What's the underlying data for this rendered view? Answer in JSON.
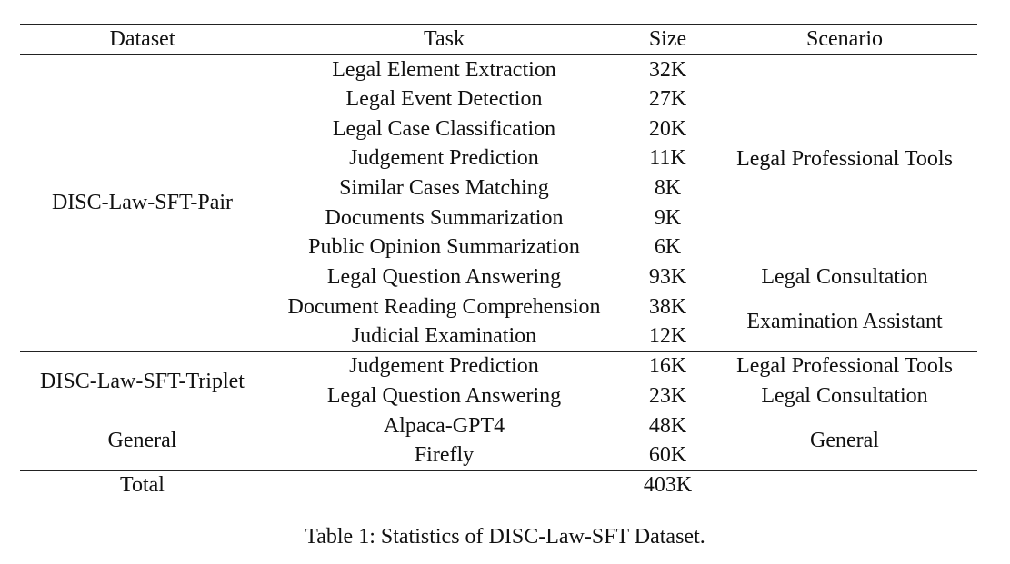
{
  "table": {
    "headers": [
      "Dataset",
      "Task",
      "Size",
      "Scenario"
    ],
    "groups": [
      {
        "dataset": "DISC-Law-SFT-Pair",
        "rows": [
          {
            "task": "Legal Element Extraction",
            "size": "32K"
          },
          {
            "task": "Legal Event Detection",
            "size": "27K"
          },
          {
            "task": "Legal Case Classification",
            "size": "20K"
          },
          {
            "task": "Judgement Prediction",
            "size": "11K"
          },
          {
            "task": "Similar Cases Matching",
            "size": "8K"
          },
          {
            "task": "Documents Summarization",
            "size": "9K"
          },
          {
            "task": "Public Opinion Summarization",
            "size": "6K"
          },
          {
            "task": "Legal Question Answering",
            "size": "93K"
          },
          {
            "task": "Document Reading Comprehension",
            "size": "38K"
          },
          {
            "task": "Judicial Examination",
            "size": "12K"
          }
        ],
        "scenarios": [
          "Legal Professional Tools",
          "Legal Consultation",
          "Examination Assistant"
        ]
      },
      {
        "dataset": "DISC-Law-SFT-Triplet",
        "rows": [
          {
            "task": "Judgement Prediction",
            "size": "16K",
            "scenario": "Legal Professional Tools"
          },
          {
            "task": "Legal Question Answering",
            "size": "23K",
            "scenario": "Legal Consultation"
          }
        ]
      },
      {
        "dataset": "General",
        "rows": [
          {
            "task": "Alpaca-GPT4",
            "size": "48K"
          },
          {
            "task": "Firefly",
            "size": "60K"
          }
        ],
        "scenario": "General"
      }
    ],
    "total": {
      "label": "Total",
      "size": "403K"
    }
  },
  "caption": "Table 1: Statistics of DISC-Law-SFT Dataset."
}
